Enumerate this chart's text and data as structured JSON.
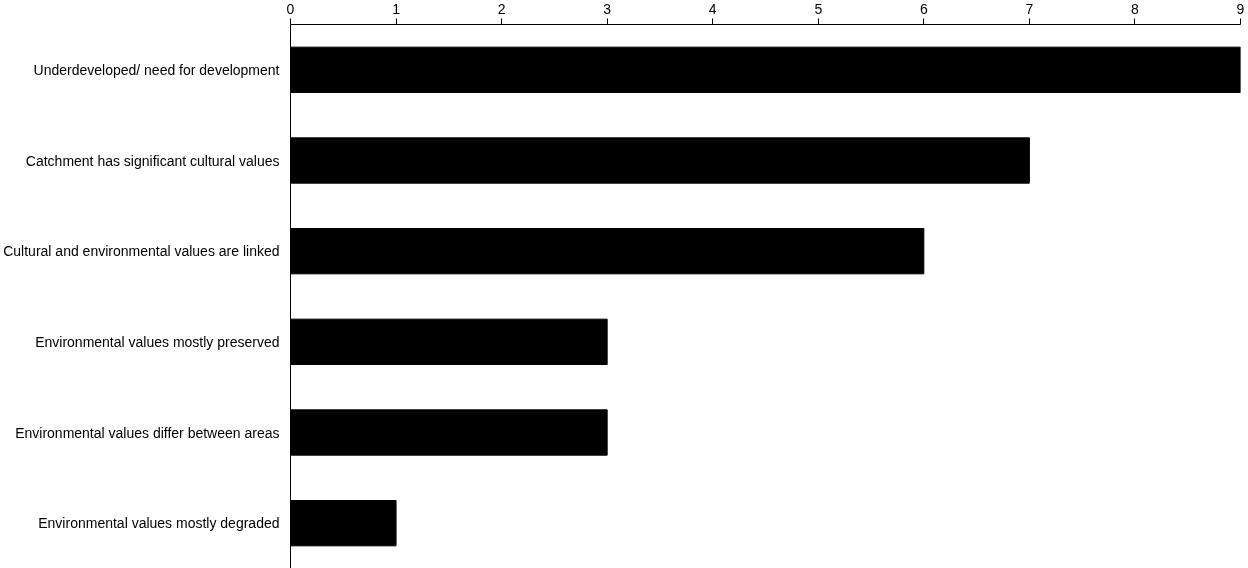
{
  "chart_data": {
    "type": "bar",
    "orientation": "horizontal",
    "categories": [
      "Underdeveloped/ need for development",
      "Catchment has significant cultural values",
      "Cultural and environmental values are linked",
      "Environmental values mostly preserved",
      "Environmental values differ between areas",
      "Environmental values mostly degraded"
    ],
    "values": [
      9,
      7,
      6,
      3,
      3,
      1
    ],
    "color": "#000000",
    "xlim": [
      0,
      9
    ],
    "xticks": [
      0,
      1,
      2,
      3,
      4,
      5,
      6,
      7,
      8,
      9
    ]
  }
}
